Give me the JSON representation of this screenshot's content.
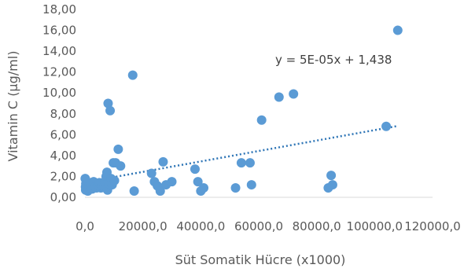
{
  "chart_data": {
    "type": "scatter",
    "title": "",
    "xlabel": "Süt Somatik Hücre (x1000)",
    "ylabel": "Vitamin  C (µg/ml)",
    "xlim": [
      0,
      120000
    ],
    "ylim": [
      0,
      18
    ],
    "x_ticks": [
      0,
      20000,
      40000,
      60000,
      80000,
      100000,
      120000
    ],
    "x_tick_labels": [
      "0,0",
      "20000,0",
      "40000,0",
      "60000,0",
      "80000,0",
      "100000,0",
      "120000,0"
    ],
    "y_ticks": [
      0,
      2,
      4,
      6,
      8,
      10,
      12,
      14,
      16,
      18
    ],
    "y_tick_labels": [
      "0,00",
      "2,00",
      "4,00",
      "6,00",
      "8,00",
      "10,00",
      "12,00",
      "14,00",
      "16,00",
      "18,00"
    ],
    "grid": false,
    "legend": "none",
    "marker_color": "#5b9bd5",
    "trendline_color": "#2e75b6",
    "trendline": {
      "type": "linear",
      "slope": 5e-05,
      "intercept": 1.438,
      "x_range": [
        0,
        108000
      ],
      "equation": "y = 5E-05x + 1,438"
    },
    "points": [
      [
        100,
        1.8
      ],
      [
        200,
        1.0
      ],
      [
        250,
        0.7
      ],
      [
        300,
        1.3
      ],
      [
        400,
        1.6
      ],
      [
        600,
        0.9
      ],
      [
        800,
        1.2
      ],
      [
        1000,
        0.6
      ],
      [
        1300,
        1.4
      ],
      [
        1600,
        0.9
      ],
      [
        2000,
        1.1
      ],
      [
        2500,
        0.8
      ],
      [
        3000,
        1.5
      ],
      [
        3500,
        1.0
      ],
      [
        4000,
        0.9
      ],
      [
        4500,
        1.2
      ],
      [
        5000,
        1.4
      ],
      [
        5500,
        0.9
      ],
      [
        6000,
        1.1
      ],
      [
        6500,
        1.0
      ],
      [
        7000,
        1.5
      ],
      [
        7300,
        2.0
      ],
      [
        7600,
        2.4
      ],
      [
        7800,
        0.7
      ],
      [
        8000,
        9.0
      ],
      [
        8300,
        1.3
      ],
      [
        8700,
        8.3
      ],
      [
        9000,
        1.8
      ],
      [
        9400,
        1.2
      ],
      [
        9800,
        3.3
      ],
      [
        10200,
        1.6
      ],
      [
        10600,
        3.3
      ],
      [
        11500,
        4.6
      ],
      [
        12300,
        3.0
      ],
      [
        16500,
        11.7
      ],
      [
        17000,
        0.6
      ],
      [
        23000,
        2.3
      ],
      [
        24000,
        1.5
      ],
      [
        25000,
        1.1
      ],
      [
        26000,
        0.6
      ],
      [
        27000,
        3.4
      ],
      [
        28000,
        1.2
      ],
      [
        30000,
        1.5
      ],
      [
        38000,
        2.7
      ],
      [
        39000,
        1.5
      ],
      [
        40000,
        0.6
      ],
      [
        41000,
        0.9
      ],
      [
        52000,
        0.9
      ],
      [
        54000,
        3.3
      ],
      [
        57000,
        3.3
      ],
      [
        57500,
        1.2
      ],
      [
        61000,
        7.4
      ],
      [
        67000,
        9.6
      ],
      [
        72000,
        9.9
      ],
      [
        84000,
        0.9
      ],
      [
        85000,
        2.1
      ],
      [
        85500,
        1.2
      ],
      [
        104000,
        6.8
      ],
      [
        108000,
        16.0
      ]
    ]
  }
}
